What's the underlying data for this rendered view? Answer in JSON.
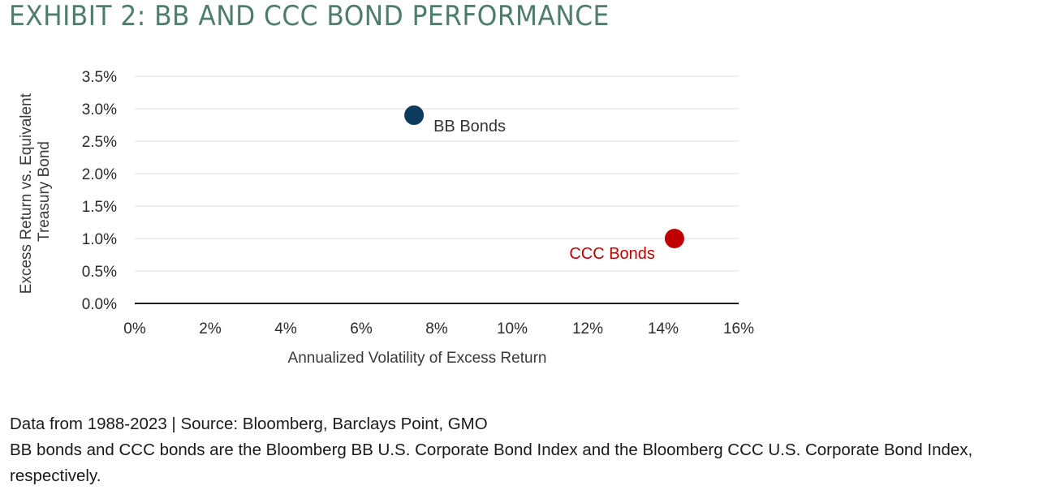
{
  "title": "EXHIBIT 2: BB AND CCC BOND PERFORMANCE",
  "chart_data": {
    "type": "scatter",
    "title": "EXHIBIT 2: BB AND CCC BOND PERFORMANCE",
    "xlabel": "Annualized Volatility of Excess Return",
    "ylabel_lines": [
      "Excess Return vs. Equivalent",
      "Treasury Bond"
    ],
    "x_ticks": [
      0,
      2,
      4,
      6,
      8,
      10,
      12,
      14,
      16
    ],
    "y_ticks": [
      0.0,
      0.5,
      1.0,
      1.5,
      2.0,
      2.5,
      3.0,
      3.5
    ],
    "x_tick_labels": [
      "0%",
      "2%",
      "4%",
      "6%",
      "8%",
      "10%",
      "12%",
      "14%",
      "16%"
    ],
    "y_tick_labels": [
      "0.0%",
      "0.5%",
      "1.0%",
      "1.5%",
      "2.0%",
      "2.5%",
      "3.0%",
      "3.5%"
    ],
    "xlim": [
      0,
      16
    ],
    "ylim": [
      0,
      3.5
    ],
    "grid": "horizontal",
    "points": [
      {
        "name": "BB Bonds",
        "x": 7.4,
        "y": 2.9,
        "color": "#0d3b5e",
        "label_side": "right-below"
      },
      {
        "name": "CCC Bonds",
        "x": 14.3,
        "y": 1.0,
        "color": "#c00000",
        "label_side": "left-below"
      }
    ],
    "colors": {
      "grid": "#dddddd",
      "axis": "#1e1e1e",
      "bb_label": "#333333",
      "ccc_label": "#c00000"
    }
  },
  "footer": {
    "source": "Data from 1988-2023 | Source: Bloomberg, Barclays Point, GMO",
    "note": "BB bonds and CCC bonds are the Bloomberg BB U.S. Corporate Bond Index and the Bloomberg CCC U.S. Corporate Bond Index, respectively."
  }
}
